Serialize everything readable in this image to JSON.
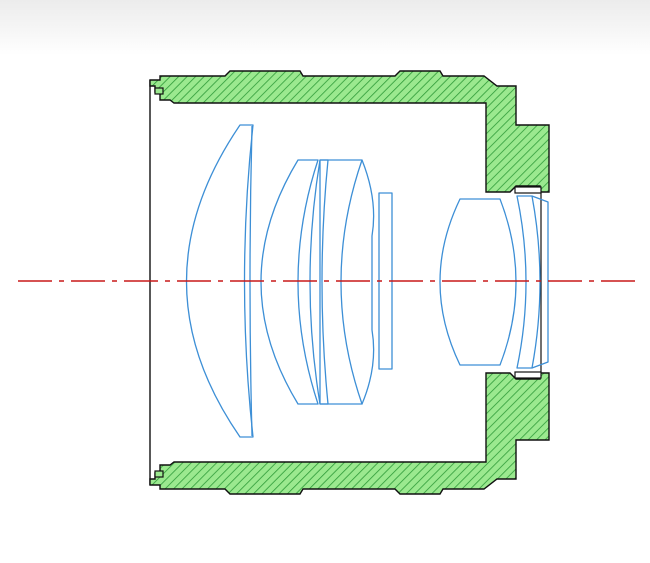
{
  "diagram": {
    "subject": "lens-barrel-cross-section",
    "colors": {
      "barrel_fill": "#9be98f",
      "barrel_hatch": "#2e9a38",
      "outline": "#111111",
      "lens_stroke": "#3d8fd6",
      "optical_axis": "#c81818",
      "background": "#ffffff"
    },
    "lens_elements": [
      {
        "id": "element-1",
        "shape": "meniscus"
      },
      {
        "id": "element-2",
        "shape": "meniscus"
      },
      {
        "id": "element-3",
        "shape": "cemented-doublet"
      },
      {
        "id": "element-4",
        "shape": "flat-plate"
      },
      {
        "id": "element-5",
        "shape": "biconvex"
      },
      {
        "id": "element-6",
        "shape": "meniscus"
      }
    ]
  }
}
